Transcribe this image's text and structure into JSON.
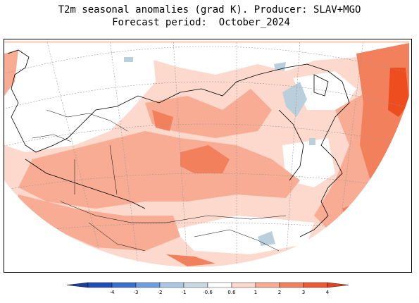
{
  "title": {
    "line1": "T2m seasonal anomalies (grad K). Producer: SLAV+MGO",
    "line2": "Forecast period:  October_2024"
  },
  "legend": {
    "bins": [
      {
        "label": "-4",
        "color": "#1f4fb5"
      },
      {
        "label": "-3",
        "color": "#3a6fd0"
      },
      {
        "label": "-2",
        "color": "#6e9ee0"
      },
      {
        "label": "-1",
        "color": "#a8c8e4"
      },
      {
        "label": "-0.6",
        "color": "#c9dae2"
      },
      {
        "label": "0.6",
        "color": "#ffffff"
      },
      {
        "label": "1",
        "color": "#fcd9cc"
      },
      {
        "label": "2",
        "color": "#f7ac93"
      },
      {
        "label": "3",
        "color": "#f2805c"
      },
      {
        "label": "4",
        "color": "#ee5a33"
      }
    ],
    "end_color_cold": "#1a3fa0",
    "end_color_warm": "#e8401c"
  },
  "colors": {
    "white": "#ffffff",
    "light_warm": "#fcd9cc",
    "medium_warm": "#f7ac93",
    "strong_warm": "#f2805c",
    "very_strong_warm": "#ee4d1f",
    "light_cold": "#b9cfdc",
    "grid": "#999999",
    "coast": "#000000"
  }
}
